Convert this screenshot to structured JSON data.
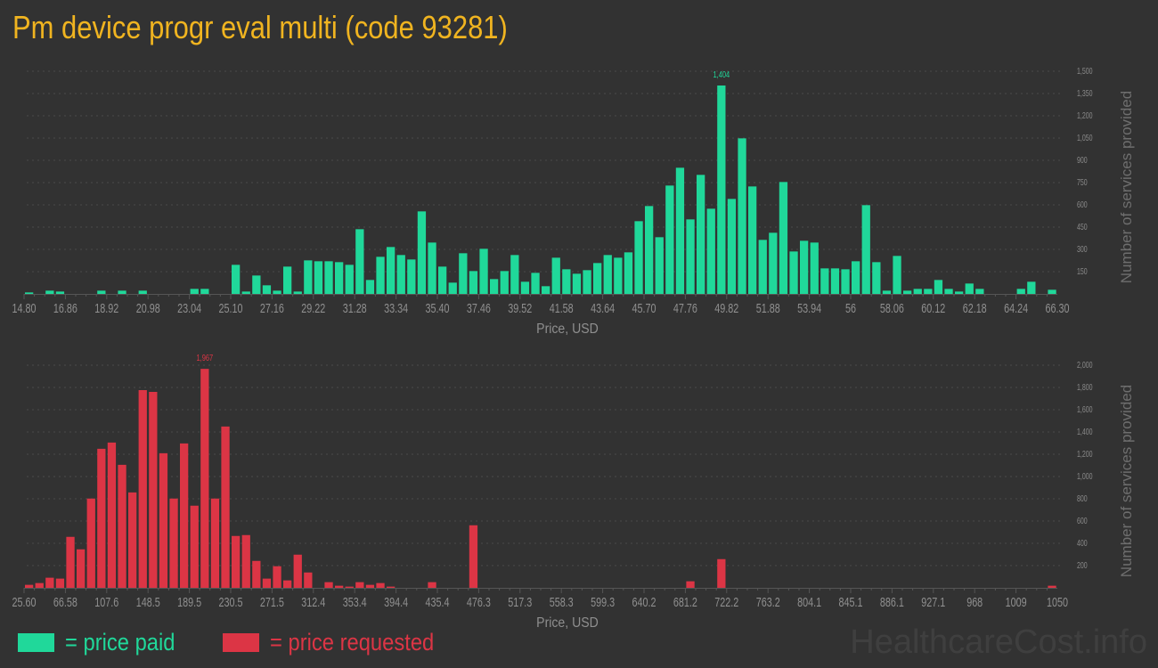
{
  "title": "Pm device progr eval multi (code 93281)",
  "colors": {
    "paid": "#20d89a",
    "requested": "#dc3545",
    "title": "#f0b420",
    "background": "#323232"
  },
  "legend": {
    "paid": "= price paid",
    "requested": "= price requested"
  },
  "watermark": "HealthcareCost.info",
  "chart_data": [
    {
      "type": "bar",
      "series_key": "paid",
      "xlabel": "Price, USD",
      "ylabel": "Number of services provided",
      "xlim": [
        14.8,
        66.3
      ],
      "bin_width": 0.515,
      "ylim": [
        0,
        1500
      ],
      "yticks": [
        150,
        300,
        450,
        600,
        750,
        900,
        1050,
        1200,
        1350,
        1500
      ],
      "ytick_labels": [
        "150",
        "300",
        "450",
        "600",
        "750",
        "900",
        "1,050",
        "1,200",
        "1,350",
        "1,500"
      ],
      "xtick_labels": [
        "14.80",
        "16.86",
        "18.92",
        "20.98",
        "23.04",
        "25.10",
        "27.16",
        "29.22",
        "31.28",
        "33.34",
        "35.40",
        "37.46",
        "39.52",
        "41.58",
        "43.64",
        "45.70",
        "47.76",
        "49.82",
        "51.88",
        "53.94",
        "56",
        "58.06",
        "60.12",
        "62.18",
        "64.24",
        "66.30"
      ],
      "grid": true,
      "peak_label": "1,404",
      "values": [
        10,
        0,
        22,
        16,
        0,
        0,
        0,
        22,
        0,
        22,
        0,
        22,
        0,
        0,
        0,
        0,
        34,
        34,
        0,
        0,
        196,
        16,
        124,
        58,
        22,
        184,
        16,
        226,
        220,
        220,
        214,
        196,
        436,
        94,
        250,
        316,
        262,
        232,
        556,
        346,
        184,
        76,
        274,
        154,
        304,
        100,
        154,
        262,
        82,
        142,
        52,
        244,
        166,
        136,
        160,
        208,
        262,
        244,
        280,
        490,
        592,
        382,
        730,
        850,
        502,
        802,
        574,
        1404,
        640,
        1048,
        724,
        364,
        412,
        754,
        286,
        358,
        346,
        172,
        172,
        166,
        220,
        598,
        214,
        22,
        256,
        22,
        34,
        34,
        94,
        34,
        16,
        70,
        34,
        0,
        0,
        0,
        34,
        82,
        0,
        28
      ]
    },
    {
      "type": "bar",
      "series_key": "requested",
      "xlabel": "Price, USD",
      "ylabel": "Number of services provided",
      "xlim": [
        25.6,
        1050
      ],
      "bin_width": 10.245,
      "ylim": [
        0,
        2000
      ],
      "yticks": [
        200,
        400,
        600,
        800,
        1000,
        1200,
        1400,
        1600,
        1800,
        2000
      ],
      "ytick_labels": [
        "200",
        "400",
        "600",
        "800",
        "1,000",
        "1,200",
        "1,400",
        "1,600",
        "1,800",
        "2,000"
      ],
      "xtick_labels": [
        "25.60",
        "66.58",
        "107.6",
        "148.5",
        "189.5",
        "230.5",
        "271.5",
        "312.4",
        "353.4",
        "394.4",
        "435.4",
        "476.3",
        "517.3",
        "558.3",
        "599.3",
        "640.2",
        "681.2",
        "722.2",
        "763.2",
        "804.1",
        "845.1",
        "886.1",
        "927.1",
        "968",
        "1009",
        "1050"
      ],
      "grid": true,
      "peak_label": "1,967",
      "values": [
        27,
        43,
        91,
        83,
        458,
        346,
        802,
        1249,
        1305,
        1105,
        857,
        1776,
        1760,
        1209,
        802,
        1297,
        738,
        1967,
        802,
        1449,
        466,
        474,
        242,
        83,
        194,
        67,
        298,
        138,
        0,
        51,
        19,
        11,
        51,
        27,
        43,
        11,
        0,
        0,
        0,
        51,
        0,
        0,
        0,
        562,
        0,
        0,
        0,
        0,
        0,
        0,
        0,
        0,
        0,
        0,
        0,
        0,
        0,
        0,
        0,
        0,
        0,
        0,
        0,
        0,
        59,
        0,
        0,
        258,
        0,
        0,
        0,
        0,
        0,
        0,
        0,
        0,
        0,
        0,
        0,
        0,
        0,
        0,
        0,
        0,
        0,
        0,
        0,
        0,
        0,
        0,
        0,
        0,
        0,
        0,
        0,
        0,
        0,
        0,
        0,
        19
      ]
    }
  ]
}
